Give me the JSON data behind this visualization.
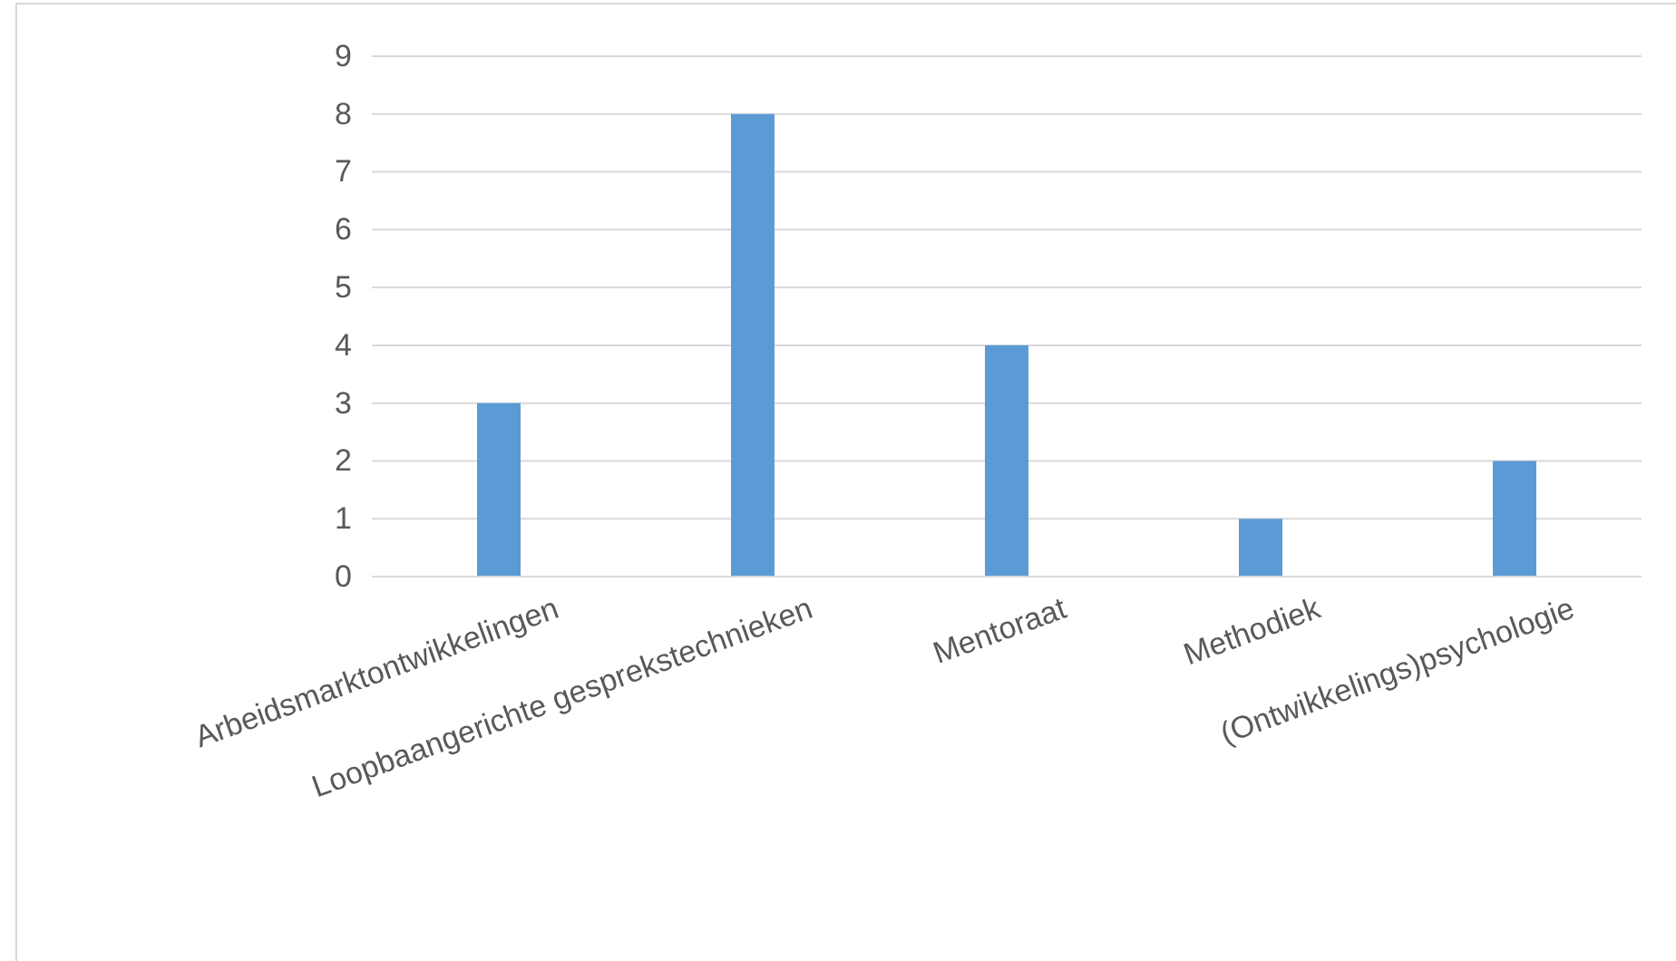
{
  "chart_data": {
    "type": "bar",
    "categories": [
      "Arbeidsmarktontwikkelingen",
      "Loopbaangerichte gesprekstechnieken",
      "Mentoraat",
      "Methodiek",
      "(Ontwikkelings)psychologie"
    ],
    "values": [
      3,
      8,
      4,
      1,
      2
    ],
    "color": "#5b9bd5",
    "ylim": [
      0,
      9
    ],
    "yticks": [
      0,
      1,
      2,
      3,
      4,
      5,
      6,
      7,
      8,
      9
    ],
    "grid": "y"
  }
}
